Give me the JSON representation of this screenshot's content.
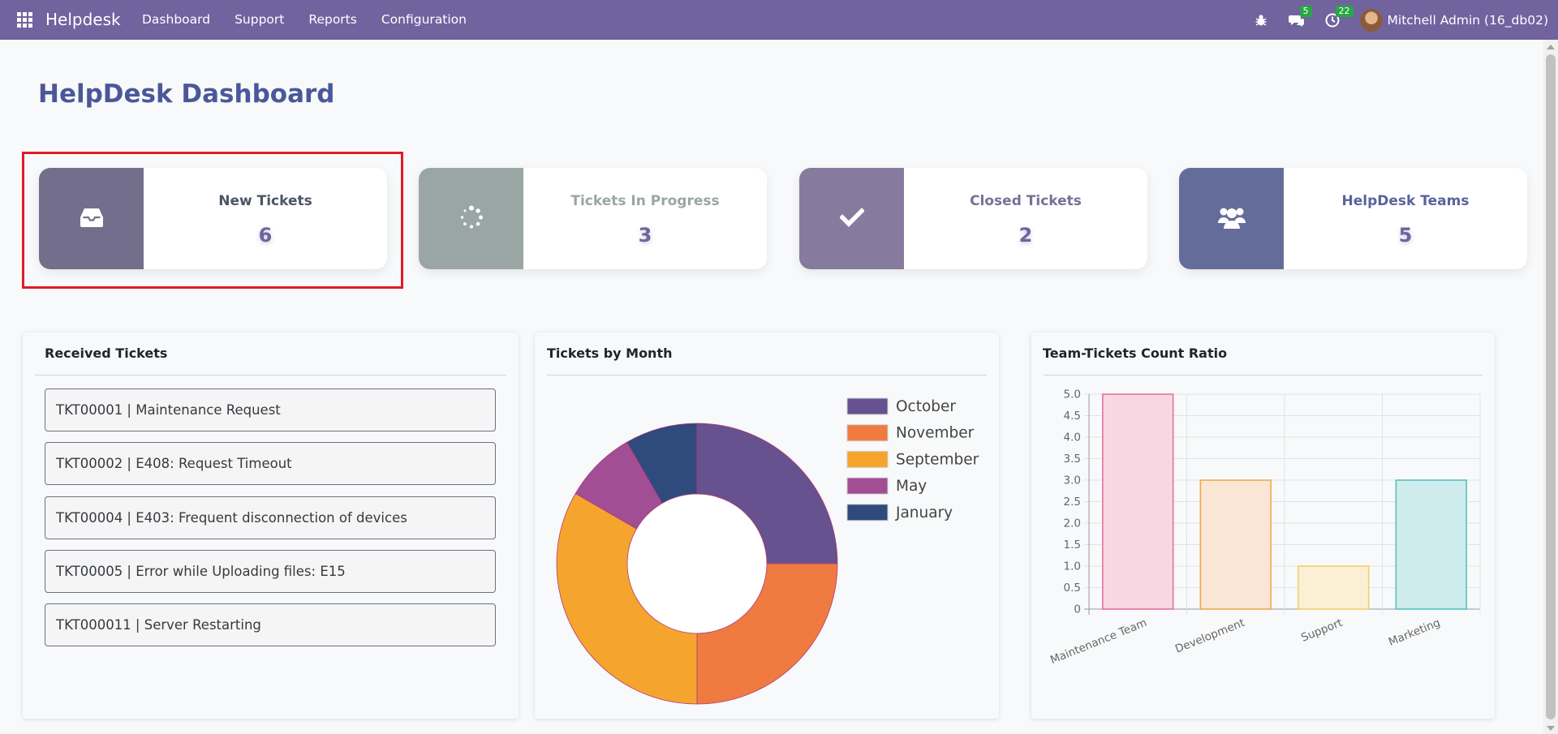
{
  "navbar": {
    "brand": "Helpdesk",
    "menu": [
      "Dashboard",
      "Support",
      "Reports",
      "Configuration"
    ],
    "messages_count": "5",
    "activities_count": "22",
    "user": "Mitchell Admin (16_db02)"
  },
  "page": {
    "title": "HelpDesk Dashboard"
  },
  "cards": [
    {
      "label": "New Tickets",
      "value": "6",
      "color": "#736e8c",
      "label_color": "#4b5563",
      "icon": "inbox-icon"
    },
    {
      "label": "Tickets In Progress",
      "value": "3",
      "color": "#9aa6a4",
      "label_color": "#9aa6a4",
      "icon": "spinner-icon"
    },
    {
      "label": "Closed Tickets",
      "value": "2",
      "color": "#867b9e",
      "label_color": "#7a6f95",
      "icon": "check-icon"
    },
    {
      "label": "HelpDesk Teams",
      "value": "5",
      "color": "#646d99",
      "label_color": "#5a639a",
      "icon": "users-icon"
    }
  ],
  "received": {
    "title": "Received Tickets",
    "tickets": [
      "TKT00001 | Maintenance Request",
      "TKT00002 | E408: Request Timeout",
      "TKT00004 | E403: Frequent disconnection of devices",
      "TKT00005 | Error while Uploading files: E15",
      "TKT000011 | Server Restarting"
    ]
  },
  "chart_data": [
    {
      "type": "pie",
      "variant": "doughnut",
      "title": "Tickets by Month",
      "legend_position": "top-right",
      "labels": [
        "October",
        "November",
        "September",
        "May",
        "January"
      ],
      "values": [
        3,
        3,
        4,
        1,
        1
      ],
      "colors": [
        "#65528e",
        "#ef7b40",
        "#f5a52d",
        "#a14e94",
        "#2f4a7d"
      ]
    },
    {
      "type": "bar",
      "title": "Team-Tickets Count Ratio",
      "categories": [
        "Maintenance Team",
        "Development",
        "Support",
        "Marketing"
      ],
      "values": [
        5,
        3,
        1,
        3
      ],
      "ylim": [
        0,
        5
      ],
      "y_ticks": [
        "0",
        "0.5",
        "1.0",
        "1.5",
        "2.0",
        "2.5",
        "3.0",
        "3.5",
        "4.0",
        "4.5",
        "5.0"
      ],
      "grid": true,
      "fills": [
        "#f8d7e3",
        "#fae6d4",
        "#fbf0d4",
        "#cfecec"
      ],
      "strokes": [
        "#e56b93",
        "#f0a347",
        "#f2cc66",
        "#4cbebe"
      ]
    }
  ]
}
